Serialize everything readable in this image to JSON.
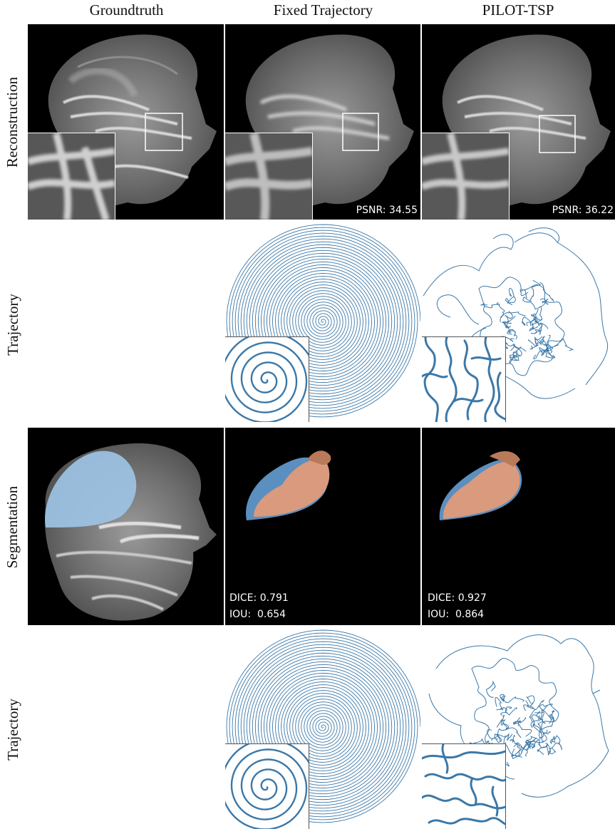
{
  "columns": [
    "Groundtruth",
    "Fixed Trajectory",
    "PILOT-TSP"
  ],
  "rows": {
    "reconstruction": "Reconstruction",
    "trajectory_1": "Trajectory",
    "segmentation": "Segmentation",
    "trajectory_2": "Trajectory"
  },
  "metrics": {
    "fixed_psnr": "PSNR: 34.55",
    "pilot_psnr": "PSNR: 36.22",
    "fixed_dice": "DICE: 0.791",
    "fixed_iou": "IOU:  0.654",
    "pilot_dice": "DICE: 0.927",
    "pilot_iou": "IOU:  0.864"
  },
  "colors": {
    "trajectory_line": "#3b78a8",
    "segmentation_gt": "#9cc3e4",
    "segmentation_pred": "#d99a7e",
    "segmentation_pred_dark": "#b97a5c",
    "segmentation_missed": "#5b8fbf"
  }
}
